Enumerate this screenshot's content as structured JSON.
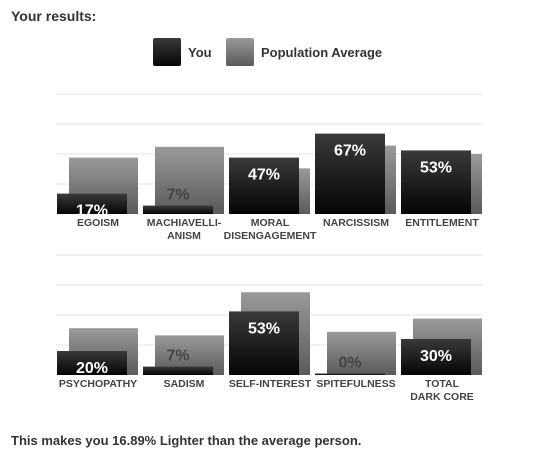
{
  "heading": "Your results:",
  "legend": {
    "you": "You",
    "avg": "Population Average"
  },
  "colors": {
    "you_top": "#3a3a3a",
    "you_bottom": "#050505",
    "avg_top": "#9a9a9a",
    "avg_bottom": "#5a5a5a",
    "gridline": "#e4e4e4",
    "axis_label": "#444444"
  },
  "footer": "This makes you 16.89% Lighter than the average person.",
  "chart_data": {
    "type": "bar",
    "ylim": [
      0,
      100
    ],
    "grid": true,
    "legend_position": "top-center",
    "series": [
      {
        "name": "You",
        "data_labels": true
      },
      {
        "name": "Population Average",
        "data_labels": false
      }
    ],
    "groups": [
      {
        "categories": [
          [
            "EGOISM"
          ],
          [
            "MACHIAVELLI-",
            "ANISM"
          ],
          [
            "MORAL",
            "DISENGAGEMENT"
          ],
          [
            "NARCISSISM"
          ],
          [
            "ENTITLEMENT"
          ]
        ],
        "you": [
          17,
          7,
          47,
          67,
          53
        ],
        "you_labels": [
          "17%",
          "7%",
          "47%",
          "67%",
          "53%"
        ],
        "average": [
          47,
          56,
          38,
          57,
          50
        ]
      },
      {
        "categories": [
          [
            "PSYCHOPATHY"
          ],
          [
            "SADISM"
          ],
          [
            "SELF-INTEREST"
          ],
          [
            "SPITEFULNESS"
          ],
          [
            "TOTAL",
            "DARK CORE"
          ]
        ],
        "you": [
          20,
          7,
          53,
          0,
          30
        ],
        "you_labels": [
          "20%",
          "7%",
          "53%",
          "0%",
          "30%"
        ],
        "average": [
          39,
          33,
          69,
          36,
          47
        ]
      }
    ]
  }
}
